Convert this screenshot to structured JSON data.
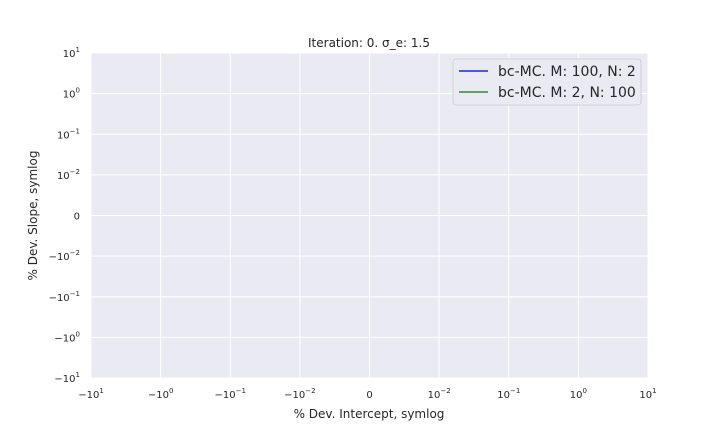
{
  "chart_data": {
    "type": "line",
    "title": "Iteration: 0. σ_e: 1.5",
    "xlabel": "% Dev. Intercept, symlog",
    "ylabel": "% Dev. Slope, symlog",
    "xscale": "symlog",
    "yscale": "symlog",
    "xlim": [
      -10,
      10
    ],
    "ylim": [
      -10,
      10
    ],
    "grid": true,
    "legend_position": "upper right",
    "xticks": [
      {
        "value": -10,
        "base": "−10",
        "exp": "1"
      },
      {
        "value": -1,
        "base": "−10",
        "exp": "0"
      },
      {
        "value": -0.1,
        "base": "−10",
        "exp": "−1"
      },
      {
        "value": -0.01,
        "base": "−10",
        "exp": "−2"
      },
      {
        "value": 0,
        "base": "0",
        "exp": ""
      },
      {
        "value": 0.01,
        "base": "10",
        "exp": "−2"
      },
      {
        "value": 0.1,
        "base": "10",
        "exp": "−1"
      },
      {
        "value": 1,
        "base": "10",
        "exp": "0"
      },
      {
        "value": 10,
        "base": "10",
        "exp": "1"
      }
    ],
    "yticks": [
      {
        "value": 10,
        "base": "10",
        "exp": "1"
      },
      {
        "value": 1,
        "base": "10",
        "exp": "0"
      },
      {
        "value": 0.1,
        "base": "10",
        "exp": "−1"
      },
      {
        "value": 0.01,
        "base": "10",
        "exp": "−2"
      },
      {
        "value": 0,
        "base": "0",
        "exp": ""
      },
      {
        "value": -0.01,
        "base": "−10",
        "exp": "−2"
      },
      {
        "value": -0.1,
        "base": "−10",
        "exp": "−1"
      },
      {
        "value": -1,
        "base": "−10",
        "exp": "0"
      },
      {
        "value": -10,
        "base": "−10",
        "exp": "1"
      }
    ],
    "series": [
      {
        "name": "bc-MC. M: 100, N: 2",
        "color": "#1f1fe0",
        "x": [],
        "y": []
      },
      {
        "name": "bc-MC. M: 2, N: 100",
        "color": "#2e8b3a",
        "x": [],
        "y": []
      }
    ]
  },
  "colors": {
    "plot_background": "#eaeaf2",
    "grid": "#ffffff",
    "text": "#262626"
  }
}
